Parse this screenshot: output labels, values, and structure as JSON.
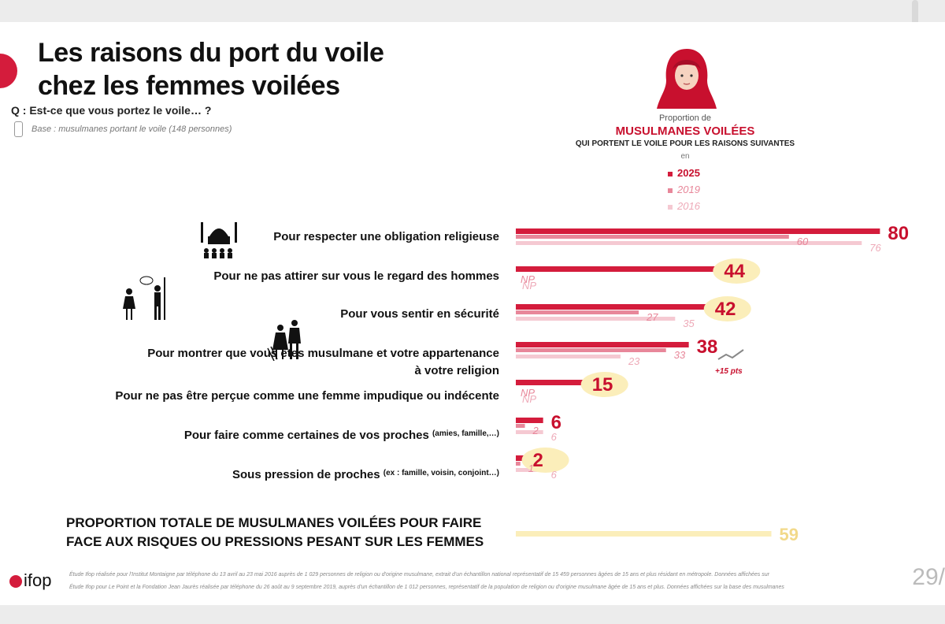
{
  "title_line1": "Les raisons du port du voile",
  "title_line2": "chez les femmes voilées",
  "question": "Q : Est-ce que vous portez le voile… ?",
  "base": "Base : musulmanes portant le voile (148 personnes)",
  "legend": {
    "proportion": "Proportion de",
    "big": "MUSULMANES VOILÉES",
    "sub": "QUI PORTENT LE VOILE POUR LES RAISONS SUIVANTES",
    "en": "en",
    "items": [
      "2025",
      "2019",
      "2016"
    ]
  },
  "colors": {
    "y2025": "#d41c3c",
    "y2019": "#e8879a",
    "y2016": "#f5c9d2",
    "highlight": "#fbeeba",
    "total": "#fbeeba",
    "total_text": "#f2d98a"
  },
  "chart_data": {
    "type": "bar",
    "orientation": "horizontal",
    "categories": [
      "Pour respecter une obligation religieuse",
      "Pour ne pas attirer sur vous le regard des hommes",
      "Pour vous sentir en sécurité",
      "Pour montrer que vous êtes musulmane et votre appartenance à votre religion",
      "Pour ne pas être perçue comme une femme impudique ou indécente",
      "Pour faire comme certaines de vos proches",
      "Sous pression de proches"
    ],
    "series": [
      {
        "name": "2025",
        "values": [
          80,
          44,
          42,
          38,
          15,
          6,
          2
        ]
      },
      {
        "name": "2019",
        "values": [
          60,
          null,
          27,
          33,
          null,
          2,
          1
        ]
      },
      {
        "name": "2016",
        "values": [
          76,
          null,
          35,
          23,
          null,
          6,
          6
        ]
      }
    ],
    "value_labels": {
      "2025": [
        "80",
        "44",
        "42",
        "38",
        "15",
        "6",
        "2"
      ],
      "2019": [
        "60",
        "NP",
        "27",
        "33",
        "NP",
        "2",
        "1"
      ],
      "2016": [
        "76",
        "NP",
        "35",
        "23",
        "NP",
        "6",
        "6"
      ]
    },
    "annotation": "+15 pts",
    "xlim": [
      0,
      80
    ]
  },
  "labels": {
    "r0": "Pour respecter une obligation religieuse",
    "r1": "Pour ne pas attirer sur vous le regard des hommes",
    "r2": "Pour vous sentir en sécurité",
    "r3a": "Pour montrer que vous êtes musulmane et votre appartenance",
    "r3b": "à votre religion",
    "r4": "Pour ne pas être perçue comme une femme impudique ou indécente",
    "r5": "Pour faire comme certaines de vos proches",
    "r5sup": "(amies, famille,…)",
    "r6": "Sous pression de proches",
    "r6sup": "(ex : famille, voisin, conjoint…)"
  },
  "total": {
    "line1": "PROPORTION TOTALE DE MUSULMANES VOILÉES POUR FAIRE",
    "line2": "FACE AUX RISQUES OU PRESSIONS PESANT SUR LES FEMMES",
    "value": 59,
    "label": "59"
  },
  "footer": {
    "logo": "ifop",
    "note1": "Étude Ifop réalisée pour l'Institut Montaigne par téléphone du 13 avril au 23 mai 2016 auprès de 1 029 personnes de religion ou d'origine musulmane, extrait d'un échantillon national représentatif de 15 459 personnes âgées de 15 ans et plus résidant en métropole. Données affichées sur",
    "note2": "Étude Ifop pour Le Point et la Fondation Jean Jaurès réalisée par téléphone du 26 août au 9 septembre 2019, auprès d'un échantillon de 1 012 personnes, représentatif de la population de religion ou d'origine musulmane âgée de 15 ans et plus. Données affichées sur la base des musulmanes",
    "page": "29/"
  }
}
